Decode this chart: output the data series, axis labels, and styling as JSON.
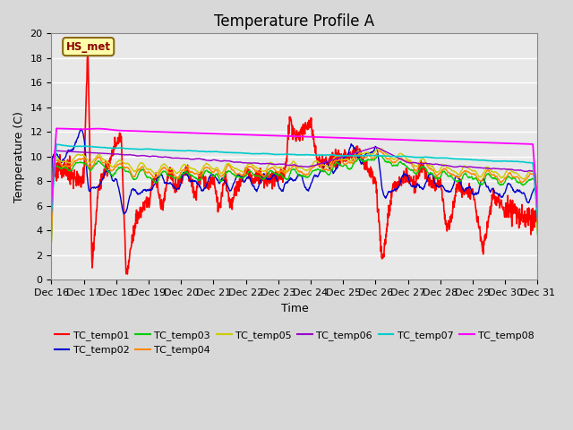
{
  "title": "Temperature Profile A",
  "xlabel": "Time",
  "ylabel": "Temperature (C)",
  "ylim": [
    0,
    20
  ],
  "yticks": [
    0,
    2,
    4,
    6,
    8,
    10,
    12,
    14,
    16,
    18,
    20
  ],
  "x_tick_labels": [
    "Dec 16",
    "Dec 17",
    "Dec 18",
    "Dec 19",
    "Dec 20",
    "Dec 21",
    "Dec 22",
    "Dec 23",
    "Dec 24",
    "Dec 25",
    "Dec 26",
    "Dec 27",
    "Dec 28",
    "Dec 29",
    "Dec 30",
    "Dec 31"
  ],
  "legend_entries": [
    "TC_temp01",
    "TC_temp02",
    "TC_temp03",
    "TC_temp04",
    "TC_temp05",
    "TC_temp06",
    "TC_temp07",
    "TC_temp08"
  ],
  "line_colors": {
    "TC_temp01": "#ff0000",
    "TC_temp02": "#0000cc",
    "TC_temp03": "#00cc00",
    "TC_temp04": "#ff8800",
    "TC_temp05": "#cccc00",
    "TC_temp06": "#9900cc",
    "TC_temp07": "#00cccc",
    "TC_temp08": "#ff00ff"
  },
  "hs_met_label": "HS_met",
  "plot_bg_color": "#e8e8e8",
  "title_fontsize": 12,
  "axis_fontsize": 9,
  "tick_fontsize": 8
}
